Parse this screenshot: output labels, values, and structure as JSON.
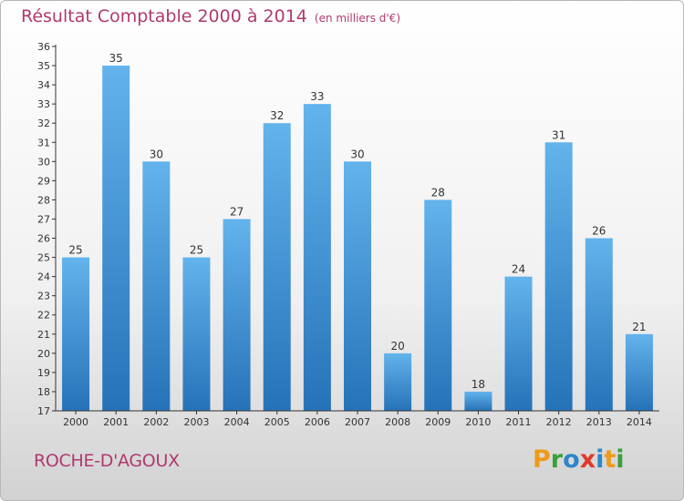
{
  "header": {
    "title": "Résultat Comptable 2000 à 2014",
    "subtitle": "(en milliers d'€)"
  },
  "footer": {
    "commune": "ROCHE-D'AGOUX",
    "brand_letters": [
      "P",
      "r",
      "o",
      "x",
      "i",
      "t",
      "i"
    ],
    "brand_colors": [
      "#f09a1a",
      "#3aa13a",
      "#2e86c9",
      "#e03a2a",
      "#2e86c9",
      "#f09a1a",
      "#3aa13a"
    ]
  },
  "colors": {
    "title": "#b03a6e",
    "bar_light": "#63b3ec",
    "bar_dark": "#2672b8",
    "axis": "#333333",
    "grid": "#dddddd"
  },
  "chart_data": {
    "type": "bar",
    "title": "Résultat Comptable 2000 à 2014",
    "subtitle": "(en milliers d'€)",
    "xlabel": "",
    "ylabel": "",
    "categories": [
      "2000",
      "2001",
      "2002",
      "2003",
      "2004",
      "2005",
      "2006",
      "2007",
      "2008",
      "2009",
      "2010",
      "2011",
      "2012",
      "2013",
      "2014"
    ],
    "values": [
      25,
      35,
      30,
      25,
      27,
      32,
      33,
      30,
      20,
      28,
      18,
      24,
      31,
      26,
      21
    ],
    "ylim": [
      17,
      36
    ],
    "ytick_step": 1,
    "grid": false
  }
}
